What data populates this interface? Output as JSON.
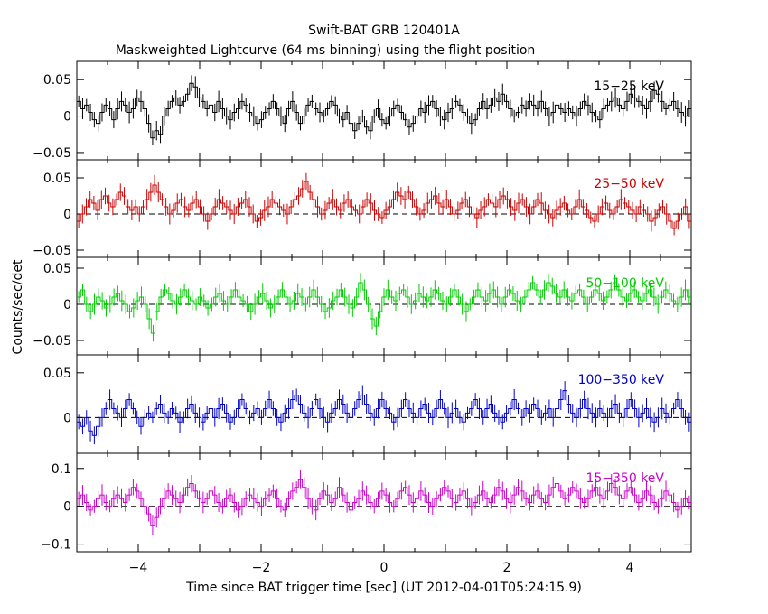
{
  "chart_data": {
    "type": "line",
    "style": "binned-step-with-error-bars",
    "title": "Swift-BAT GRB 120401A",
    "subtitle": "Maskweighted Lightcurve (64 ms binning) using the flight position",
    "xlabel": "Time since BAT trigger time [sec] (UT 2012-04-01T05:24:15.9)",
    "ylabel": "Counts/sec/det",
    "xlim": [
      -5,
      5
    ],
    "bin_width_sec": 0.064,
    "x_ticks": [
      -4,
      -2,
      0,
      2,
      4
    ],
    "grid": false,
    "zero_line": "dashed",
    "panels": [
      {
        "name": "15−25 keV",
        "color": "#000000",
        "ylim": [
          -0.06,
          0.075
        ],
        "y_ticks": [
          -0.05,
          0,
          0.05
        ],
        "y_tick_labels": [
          "−0.05",
          "0",
          "0.05"
        ],
        "values": [
          0.02,
          0.01,
          0.015,
          0.005,
          -0.005,
          -0.01,
          0.005,
          0.015,
          0.01,
          -0.005,
          0.01,
          0.02,
          0.015,
          0.005,
          0.01,
          0.025,
          0.02,
          0.01,
          -0.01,
          -0.03,
          -0.02,
          -0.025,
          0.0,
          0.01,
          0.02,
          0.025,
          0.015,
          0.02,
          0.03,
          0.045,
          0.04,
          0.025,
          0.02,
          0.01,
          0.015,
          0.005,
          0.02,
          0.01,
          0.0,
          -0.005,
          0.005,
          0.01,
          0.02,
          0.015,
          0.005,
          0.0,
          -0.01,
          -0.005,
          0.005,
          0.01,
          0.02,
          0.01,
          0.0,
          -0.01,
          0.01,
          0.02,
          0.005,
          -0.01,
          0.0,
          0.015,
          0.02,
          0.01,
          0.005,
          0.0,
          0.01,
          0.02,
          0.015,
          0.0,
          -0.005,
          0.005,
          -0.01,
          -0.02,
          -0.01,
          0.0,
          -0.015,
          -0.02,
          0.0,
          0.01,
          -0.005,
          -0.01,
          0.0,
          0.01,
          0.015,
          0.005,
          -0.005,
          -0.015,
          -0.01,
          0.0,
          0.01,
          0.005,
          0.015,
          0.02,
          0.01,
          0.0,
          -0.005,
          0.005,
          0.01,
          0.02,
          0.015,
          0.005,
          0.0,
          -0.01,
          -0.005,
          0.01,
          0.02,
          0.01,
          0.015,
          0.025,
          0.02,
          0.03,
          0.02,
          0.01,
          0.0,
          0.005,
          0.015,
          0.01,
          0.02,
          0.015,
          0.01,
          0.02,
          0.01,
          0.0,
          0.005,
          0.015,
          0.01,
          0.005,
          0.01,
          0.005,
          0.0,
          0.01,
          0.02,
          0.015,
          0.005,
          0.0,
          -0.005,
          0.01,
          0.015,
          0.02,
          0.025,
          0.015,
          0.01,
          0.02,
          0.03,
          0.025,
          0.02,
          0.015,
          0.01,
          0.02,
          0.035,
          0.03,
          0.02,
          0.01,
          0.015,
          0.02,
          0.01,
          0.005,
          0.0,
          0.01
        ]
      },
      {
        "name": "25−50 keV",
        "color": "#cc0000",
        "ylim": [
          -0.06,
          0.075
        ],
        "y_ticks": [
          -0.05,
          0,
          0.05
        ],
        "y_tick_labels": [
          "−0.05",
          "0",
          "0.05"
        ],
        "values": [
          -0.01,
          0.0,
          0.01,
          0.02,
          0.015,
          0.005,
          0.02,
          0.025,
          0.015,
          0.01,
          0.02,
          0.03,
          0.025,
          0.01,
          0.005,
          0.01,
          0.0,
          0.01,
          0.02,
          0.03,
          0.04,
          0.03,
          0.02,
          0.01,
          0.0,
          0.005,
          0.015,
          0.02,
          0.01,
          0.005,
          0.015,
          0.02,
          0.01,
          0.0,
          -0.01,
          0.0,
          0.01,
          0.02,
          0.015,
          0.01,
          0.005,
          0.0,
          0.01,
          0.015,
          0.02,
          0.01,
          0.0,
          -0.01,
          -0.005,
          0.005,
          0.01,
          0.02,
          0.015,
          0.01,
          0.005,
          0.0,
          0.01,
          0.02,
          0.025,
          0.035,
          0.045,
          0.03,
          0.02,
          0.01,
          0.0,
          0.005,
          0.015,
          0.02,
          0.01,
          0.005,
          0.015,
          0.02,
          0.01,
          0.005,
          0.0,
          0.01,
          0.02,
          0.015,
          0.005,
          0.0,
          -0.005,
          0.005,
          0.01,
          0.02,
          0.03,
          0.025,
          0.02,
          0.03,
          0.02,
          0.01,
          0.0,
          0.005,
          0.015,
          0.02,
          0.025,
          0.015,
          0.01,
          0.02,
          0.01,
          0.0,
          0.005,
          0.015,
          0.02,
          0.01,
          0.0,
          -0.005,
          0.005,
          0.01,
          0.02,
          0.015,
          0.01,
          0.02,
          0.025,
          0.02,
          0.01,
          0.005,
          0.015,
          0.02,
          0.01,
          0.0,
          0.01,
          0.02,
          0.015,
          0.005,
          0.0,
          -0.005,
          0.005,
          0.01,
          0.015,
          0.005,
          0.0,
          0.01,
          0.02,
          0.01,
          0.005,
          -0.005,
          -0.01,
          0.0,
          0.01,
          0.015,
          0.005,
          0.0,
          0.01,
          0.02,
          0.015,
          0.01,
          0.005,
          0.0,
          0.01,
          0.005,
          0.0,
          -0.01,
          -0.005,
          0.005,
          0.01,
          0.0,
          -0.01,
          -0.02,
          -0.01,
          0.0,
          0.01,
          -0.01
        ]
      },
      {
        "name": "50−100 keV",
        "color": "#00cc00",
        "ylim": [
          -0.07,
          0.065
        ],
        "y_ticks": [
          -0.05,
          0,
          0.05
        ],
        "y_tick_labels": [
          "−0.05",
          "0",
          "0.05"
        ],
        "values": [
          0.01,
          0.02,
          0.0,
          -0.01,
          0.0,
          0.01,
          0.005,
          -0.005,
          0.0,
          0.01,
          0.015,
          0.005,
          0.0,
          -0.01,
          -0.005,
          0.005,
          0.01,
          0.0,
          -0.02,
          -0.04,
          -0.01,
          0.01,
          0.02,
          0.015,
          0.005,
          0.0,
          0.01,
          0.02,
          0.01,
          0.005,
          0.0,
          0.01,
          0.005,
          -0.005,
          0.0,
          0.01,
          0.015,
          0.005,
          0.0,
          0.01,
          0.02,
          0.01,
          0.005,
          0.0,
          -0.01,
          0.0,
          0.01,
          0.015,
          0.005,
          -0.005,
          0.0,
          0.01,
          0.02,
          0.01,
          0.0,
          0.005,
          0.015,
          0.01,
          0.0,
          0.01,
          0.02,
          0.01,
          0.0,
          -0.01,
          -0.005,
          0.005,
          0.01,
          0.02,
          0.01,
          0.0,
          -0.005,
          0.01,
          0.03,
          0.02,
          0.0,
          -0.02,
          -0.03,
          -0.01,
          0.01,
          0.02,
          0.01,
          0.005,
          0.015,
          0.02,
          0.01,
          0.0,
          0.005,
          0.015,
          0.01,
          0.005,
          0.01,
          0.02,
          0.015,
          0.005,
          0.0,
          0.01,
          0.02,
          0.01,
          0.0,
          -0.01,
          0.0,
          0.01,
          0.02,
          0.01,
          0.005,
          0.015,
          0.02,
          0.01,
          0.0,
          0.01,
          0.02,
          0.015,
          0.005,
          0.0,
          0.01,
          0.02,
          0.03,
          0.02,
          0.01,
          0.02,
          0.03,
          0.025,
          0.015,
          0.01,
          0.02,
          0.01,
          0.005,
          0.015,
          0.02,
          0.01,
          0.0,
          0.01,
          0.02,
          0.015,
          0.005,
          0.01,
          0.02,
          0.03,
          0.02,
          0.01,
          0.005,
          0.015,
          0.02,
          0.01,
          0.005,
          0.015,
          0.02,
          0.01,
          0.0,
          0.01,
          0.02,
          0.015,
          0.005,
          0.0,
          0.01,
          0.02,
          0.01
        ]
      },
      {
        "name": "100−350 keV",
        "color": "#0000cc",
        "ylim": [
          -0.04,
          0.07
        ],
        "y_ticks": [
          0,
          0.05
        ],
        "y_tick_labels": [
          "0",
          "0.05"
        ],
        "values": [
          -0.005,
          -0.01,
          0.0,
          -0.015,
          -0.02,
          -0.01,
          0.0,
          0.01,
          0.02,
          0.01,
          0.005,
          0.0,
          0.01,
          0.02,
          0.01,
          0.0,
          -0.01,
          0.0,
          0.005,
          0.0,
          0.01,
          0.015,
          0.005,
          0.0,
          0.01,
          0.005,
          -0.005,
          0.0,
          0.01,
          0.015,
          0.005,
          0.0,
          -0.005,
          0.005,
          0.01,
          0.0,
          0.01,
          0.015,
          0.005,
          -0.005,
          0.0,
          0.01,
          0.02,
          0.01,
          0.0,
          0.005,
          0.01,
          0.0,
          0.01,
          0.02,
          0.01,
          0.0,
          -0.005,
          0.005,
          0.01,
          0.02,
          0.025,
          0.015,
          0.005,
          0.0,
          0.01,
          0.02,
          0.01,
          0.0,
          -0.005,
          0.005,
          0.01,
          0.02,
          0.015,
          0.005,
          0.0,
          0.01,
          0.02,
          0.025,
          0.015,
          0.005,
          0.0,
          0.01,
          0.02,
          0.01,
          0.005,
          -0.005,
          0.0,
          0.01,
          0.02,
          0.01,
          0.005,
          0.0,
          0.01,
          0.015,
          0.005,
          0.0,
          0.01,
          0.02,
          0.01,
          0.0,
          0.005,
          0.01,
          0.0,
          -0.005,
          0.005,
          0.01,
          0.02,
          0.01,
          0.0,
          0.01,
          0.015,
          0.005,
          0.0,
          -0.005,
          0.005,
          0.01,
          0.02,
          0.01,
          0.0,
          0.01,
          0.005,
          0.015,
          0.01,
          0.0,
          0.005,
          0.01,
          0.0,
          0.01,
          0.02,
          0.03,
          0.015,
          0.005,
          0.0,
          0.01,
          0.02,
          0.01,
          0.005,
          0.0,
          0.01,
          0.005,
          0.0,
          0.01,
          0.015,
          0.005,
          0.0,
          0.01,
          0.02,
          0.01,
          0.0,
          0.005,
          0.01,
          0.0,
          -0.005,
          0.0,
          0.01,
          0.005,
          0.0,
          0.01,
          0.02,
          0.01,
          0.0,
          -0.005
        ]
      },
      {
        "name": "15−350 keV",
        "color": "#cc00cc",
        "ylim": [
          -0.12,
          0.14
        ],
        "y_ticks": [
          -0.1,
          0,
          0.1
        ],
        "y_tick_labels": [
          "−0.1",
          "0",
          "0.1"
        ],
        "values": [
          0.02,
          0.03,
          0.01,
          -0.01,
          0.0,
          0.02,
          0.03,
          0.01,
          0.0,
          0.02,
          0.03,
          0.02,
          0.01,
          0.03,
          0.05,
          0.04,
          0.02,
          0.0,
          -0.02,
          -0.05,
          -0.03,
          0.0,
          0.02,
          0.04,
          0.03,
          0.02,
          0.01,
          0.03,
          0.05,
          0.06,
          0.04,
          0.02,
          0.01,
          0.02,
          0.04,
          0.03,
          0.01,
          0.0,
          0.02,
          0.03,
          0.01,
          -0.01,
          0.0,
          0.02,
          0.03,
          0.02,
          0.01,
          0.0,
          0.02,
          0.03,
          0.04,
          0.02,
          0.0,
          -0.01,
          0.02,
          0.04,
          0.05,
          0.07,
          0.05,
          0.02,
          0.0,
          -0.01,
          0.02,
          0.04,
          0.03,
          0.01,
          0.02,
          0.05,
          0.03,
          0.01,
          -0.01,
          0.01,
          0.02,
          0.04,
          0.03,
          0.01,
          0.0,
          0.02,
          0.04,
          0.03,
          0.01,
          0.0,
          0.02,
          0.04,
          0.05,
          0.03,
          0.01,
          0.02,
          0.04,
          0.03,
          0.01,
          0.0,
          0.02,
          0.03,
          0.05,
          0.04,
          0.02,
          0.01,
          0.03,
          0.04,
          0.02,
          0.0,
          0.01,
          0.03,
          0.04,
          0.02,
          0.01,
          0.03,
          0.05,
          0.04,
          0.02,
          0.01,
          0.03,
          0.05,
          0.04,
          0.02,
          0.01,
          0.03,
          0.04,
          0.02,
          0.01,
          0.03,
          0.05,
          0.06,
          0.04,
          0.02,
          0.03,
          0.05,
          0.04,
          0.02,
          0.01,
          0.02,
          0.04,
          0.05,
          0.03,
          0.02,
          0.04,
          0.06,
          0.05,
          0.03,
          0.02,
          0.04,
          0.05,
          0.03,
          0.01,
          0.02,
          0.04,
          0.03,
          0.01,
          0.0,
          0.02,
          0.04,
          0.03,
          0.01,
          -0.01,
          0.0,
          0.02,
          0.01
        ]
      }
    ]
  }
}
